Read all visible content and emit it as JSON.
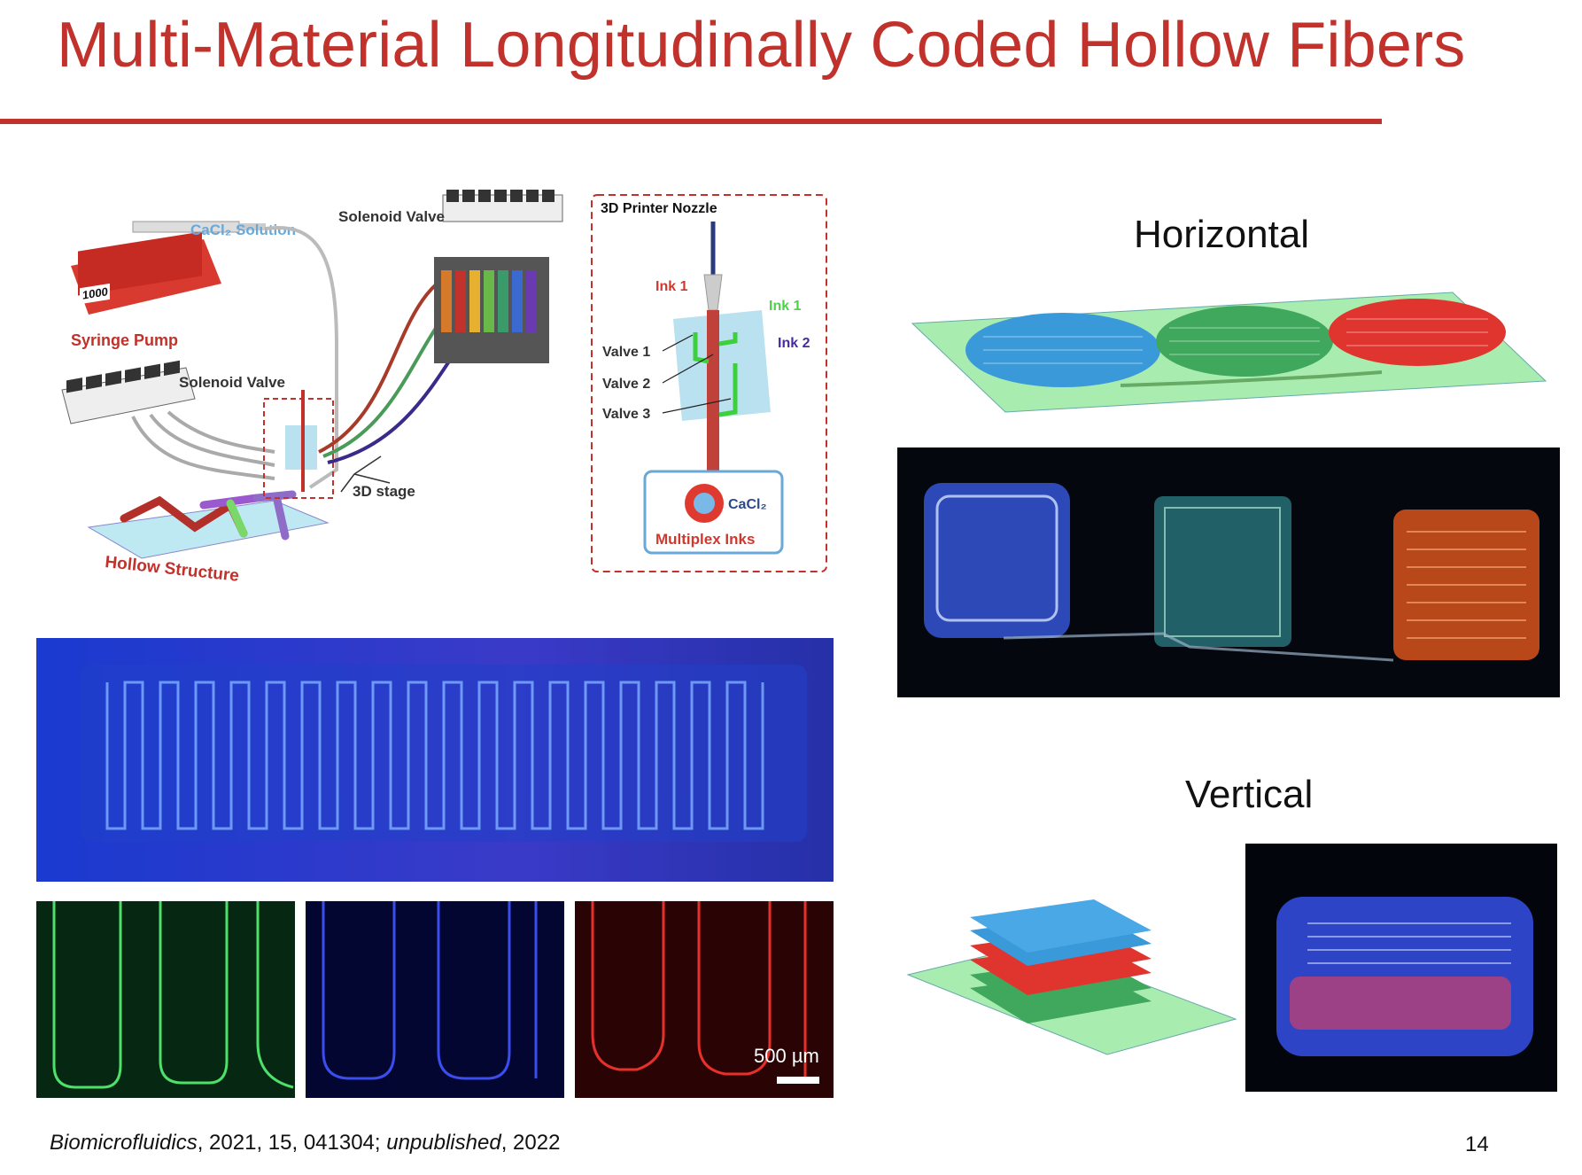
{
  "slide": {
    "title": "Multi-Material Longitudinally Coded Hollow Fibers",
    "page_number": "14",
    "citation": {
      "journal": "Biomicrofluidics",
      "details": ", 2021, 15, 041304; ",
      "note": "unpublished",
      "year": ", 2022"
    }
  },
  "schematic": {
    "syringe_pump_label": "Syringe Pump",
    "pump_display": "1000",
    "cacl2_solution_label": "CaCl₂ Solution",
    "solenoid_valve_top": "Solenoid Valve",
    "solenoid_valve_left": "Solenoid Valve",
    "stage_label": "3D stage",
    "hollow_structure_label": "Hollow Structure",
    "nozzle_panel": {
      "title": "3D Printer Nozzle",
      "ink1_red": "Ink 1",
      "ink1_green": "Ink 1",
      "ink2": "Ink 2",
      "valve1": "Valve 1",
      "valve2": "Valve 2",
      "valve3": "Valve 3",
      "cacl2": "CaCl₂",
      "multiplex_inks": "Multiplex Inks"
    }
  },
  "horizontal": {
    "heading": "Horizontal"
  },
  "vertical": {
    "heading": "Vertical"
  },
  "micrographs": {
    "scale_bar": "500 µm"
  },
  "colors": {
    "accent_red": "#c0322b",
    "blue_fiber": "#3a9ad9",
    "green_fiber": "#3fa85c",
    "red_fiber": "#e0352e",
    "substrate": "#a8ecb0"
  }
}
